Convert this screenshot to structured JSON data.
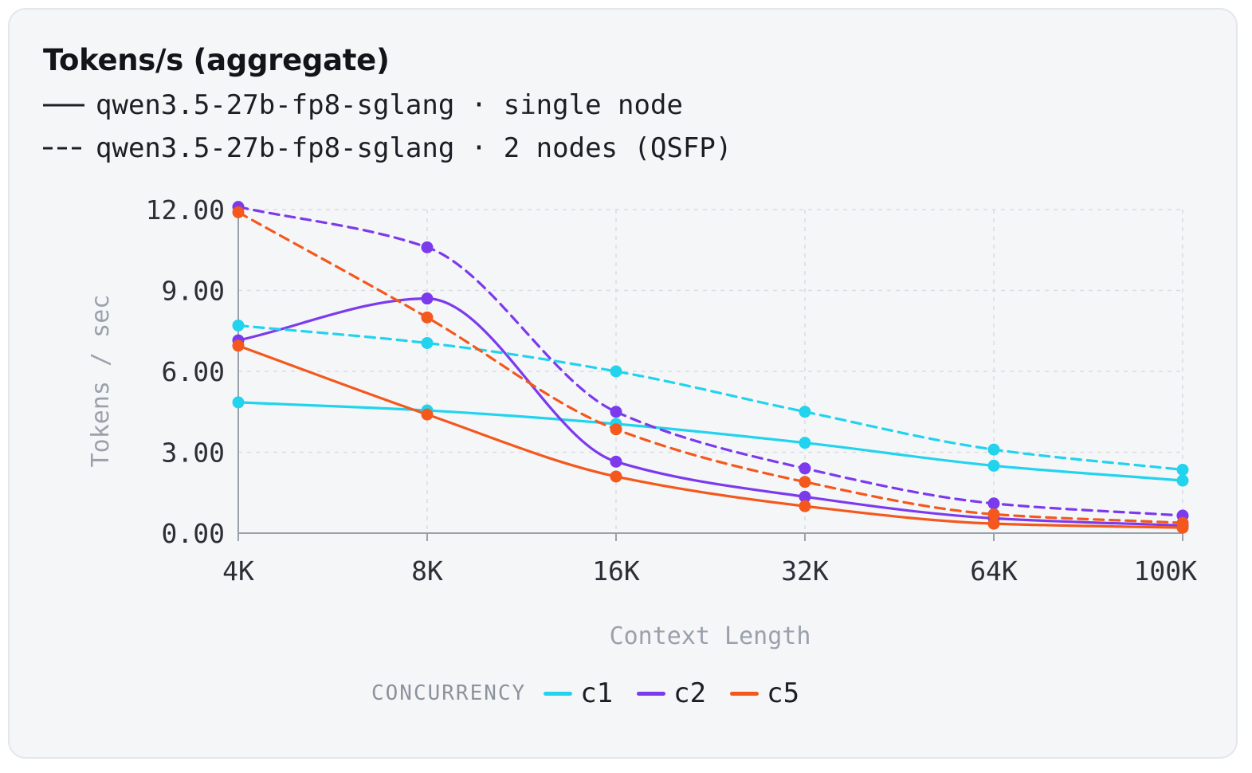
{
  "chart_data": {
    "type": "line",
    "title": "Tokens/s (aggregate)",
    "xlabel": "Context Length",
    "ylabel": "Tokens / sec",
    "ylim": [
      0,
      12
    ],
    "yticks": [
      "0.00",
      "3.00",
      "6.00",
      "9.00",
      "12.00"
    ],
    "ytick_values": [
      0,
      3,
      6,
      9,
      12
    ],
    "categories": [
      "4K",
      "8K",
      "16K",
      "32K",
      "64K",
      "100K"
    ],
    "grid": true,
    "line_styles": [
      {
        "style": "solid",
        "label": "qwen3.5-27b-fp8-sglang · single node"
      },
      {
        "style": "dashed",
        "label": "qwen3.5-27b-fp8-sglang · 2 nodes (QSFP)"
      }
    ],
    "legend_title": "CONCURRENCY",
    "legend": [
      {
        "label": "c1",
        "color": "#22d3ee"
      },
      {
        "label": "c2",
        "color": "#7c3aed"
      },
      {
        "label": "c5",
        "color": "#f4581c"
      }
    ],
    "series": [
      {
        "concurrency": "c1",
        "style": "solid",
        "color": "#22d3ee",
        "values": [
          4.85,
          4.55,
          4.05,
          3.35,
          2.5,
          1.95
        ]
      },
      {
        "concurrency": "c2",
        "style": "solid",
        "color": "#7c3aed",
        "values": [
          7.15,
          8.7,
          2.65,
          1.35,
          0.55,
          0.28
        ]
      },
      {
        "concurrency": "c5",
        "style": "solid",
        "color": "#f4581c",
        "values": [
          6.95,
          4.4,
          2.1,
          1.0,
          0.35,
          0.2
        ]
      },
      {
        "concurrency": "c1",
        "style": "dashed",
        "color": "#22d3ee",
        "values": [
          7.7,
          7.05,
          6.0,
          4.5,
          3.1,
          2.35
        ]
      },
      {
        "concurrency": "c2",
        "style": "dashed",
        "color": "#7c3aed",
        "values": [
          12.1,
          10.6,
          4.5,
          2.4,
          1.1,
          0.65
        ]
      },
      {
        "concurrency": "c5",
        "style": "dashed",
        "color": "#f4581c",
        "values": [
          11.9,
          8.0,
          3.85,
          1.9,
          0.7,
          0.38
        ]
      }
    ]
  }
}
